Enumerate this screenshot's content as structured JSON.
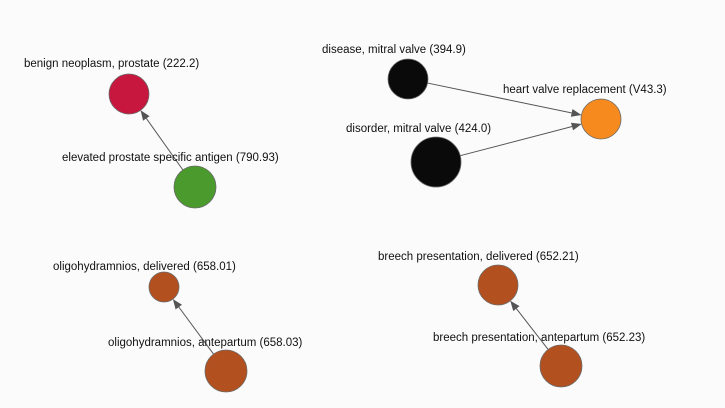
{
  "graph": {
    "nodes": [
      {
        "id": "n1",
        "label": "benign neoplasm, prostate (222.2)",
        "color": "#c8173f"
      },
      {
        "id": "n2",
        "label": "elevated prostate specific antigen (790.93)",
        "color": "#4a9a2e"
      },
      {
        "id": "n3",
        "label": "disease, mitral valve (394.9)",
        "color": "#0a0a0a"
      },
      {
        "id": "n4",
        "label": "disorder, mitral valve (424.0)",
        "color": "#0a0a0a"
      },
      {
        "id": "n5",
        "label": "heart valve replacement (V43.3)",
        "color": "#f68a1e"
      },
      {
        "id": "n6",
        "label": "oligohydramnios, delivered (658.01)",
        "color": "#b3501f"
      },
      {
        "id": "n7",
        "label": "oligohydramnios, antepartum (658.03)",
        "color": "#b3501f"
      },
      {
        "id": "n8",
        "label": "breech presentation, delivered (652.21)",
        "color": "#b3501f"
      },
      {
        "id": "n9",
        "label": "breech presentation, antepartum (652.23)",
        "color": "#b3501f"
      }
    ],
    "edges": [
      {
        "from": "n2",
        "to": "n1"
      },
      {
        "from": "n3",
        "to": "n5"
      },
      {
        "from": "n4",
        "to": "n5"
      },
      {
        "from": "n7",
        "to": "n6"
      },
      {
        "from": "n9",
        "to": "n8"
      }
    ]
  }
}
